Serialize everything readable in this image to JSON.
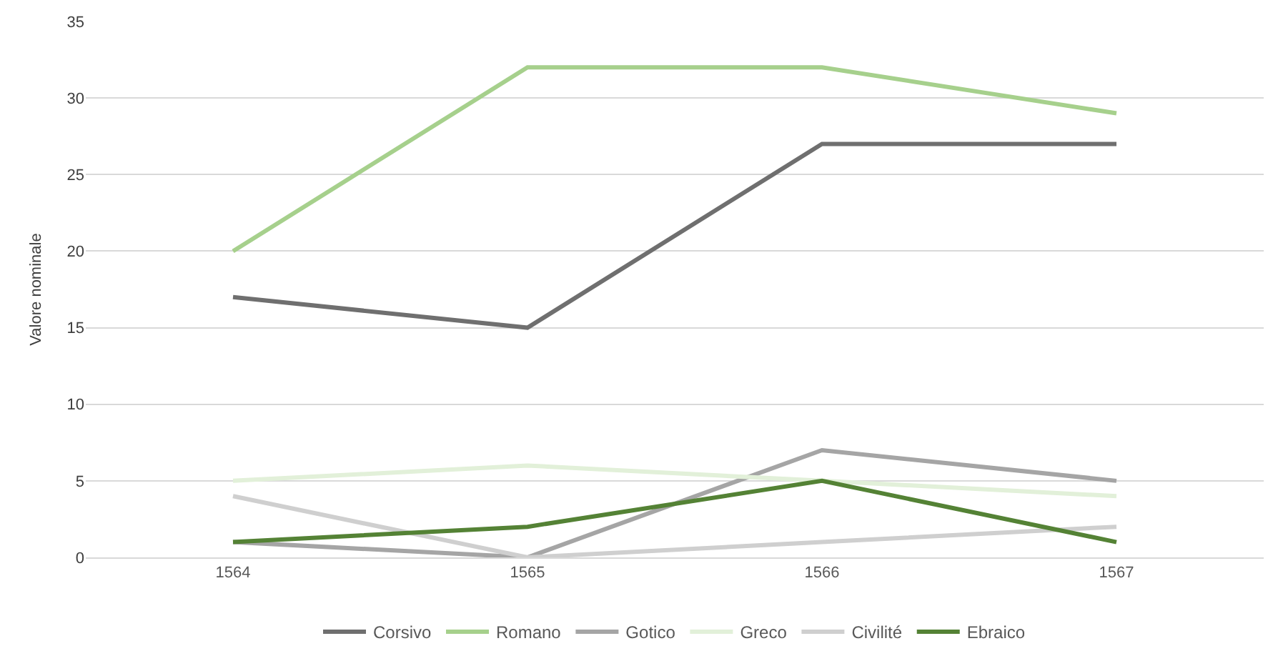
{
  "chart_data": {
    "type": "line",
    "ylabel": "Valore nominale",
    "categories": [
      "1564",
      "1565",
      "1566",
      "1567"
    ],
    "ylim": [
      0,
      35
    ],
    "yticks": [
      0,
      5,
      10,
      15,
      20,
      25,
      30,
      35
    ],
    "grid": "y",
    "legend": "bottom",
    "marker": "none",
    "line_style": "solid",
    "series": [
      {
        "name": "Corsivo",
        "color": "#6f6f6f",
        "values": [
          17,
          15,
          27,
          27
        ]
      },
      {
        "name": "Romano",
        "color": "#a6d08c",
        "values": [
          20,
          32,
          32,
          29
        ]
      },
      {
        "name": "Gotico",
        "color": "#a5a5a5",
        "values": [
          1,
          0,
          7,
          5
        ]
      },
      {
        "name": "Greco",
        "color": "#e2f0d9",
        "values": [
          5,
          6,
          5,
          4
        ]
      },
      {
        "name": "Civilité",
        "color": "#cfcfcf",
        "values": [
          4,
          0,
          1,
          2
        ]
      },
      {
        "name": "Ebraico",
        "color": "#548235",
        "values": [
          1,
          2,
          5,
          1
        ]
      }
    ]
  }
}
